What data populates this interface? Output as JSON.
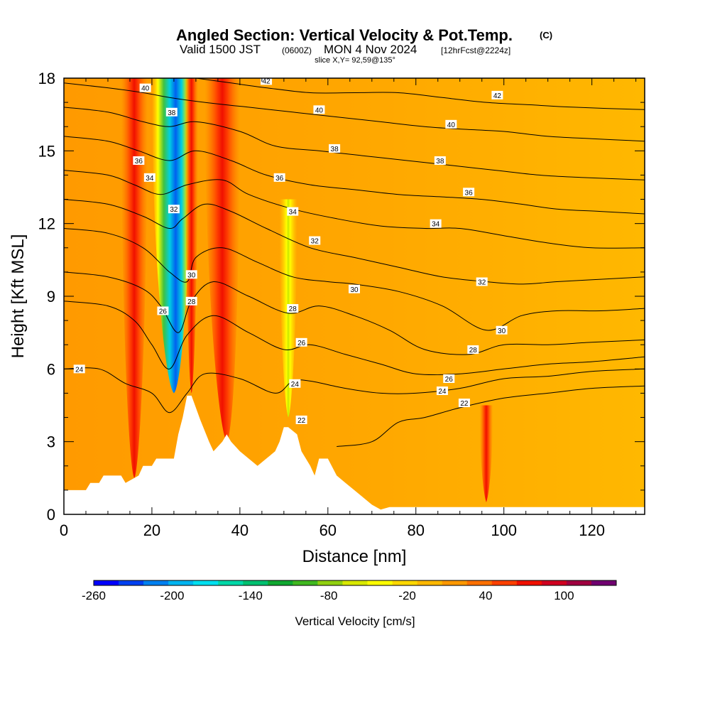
{
  "header": {
    "title_main": "Angled Section: Vertical Velocity & Pot.Temp.",
    "title_unit": "(C)",
    "valid_a": "Valid 1500 JST",
    "valid_b": "(0600Z)",
    "valid_c": "MON 4 Nov 2024",
    "valid_d": "[12hrFcst@2224z]",
    "slice": "slice X,Y= 92,59@135°"
  },
  "chart_data": {
    "type": "heatmap",
    "xlabel": "Distance [nm]",
    "ylabel": "Height [Kft MSL]",
    "xlim": [
      0,
      132
    ],
    "ylim": [
      0,
      18
    ],
    "x_ticks": [
      0,
      20,
      40,
      60,
      80,
      100,
      120
    ],
    "y_ticks": [
      0,
      3,
      6,
      9,
      12,
      15,
      18
    ],
    "x_tick_labels": [
      "0",
      "20",
      "40",
      "60",
      "80",
      "100",
      "120"
    ],
    "y_tick_labels": [
      "0",
      "3",
      "6",
      "9",
      "12",
      "15",
      "18"
    ],
    "colorbar": {
      "label": "Vertical Velocity [cm/s]",
      "min": -260,
      "max": 140,
      "step": 20,
      "tick_values": [
        -260,
        -200,
        -140,
        -80,
        -20,
        40,
        100
      ],
      "tick_labels": [
        "-260",
        "-200",
        "-140",
        "-80",
        "-20",
        "40",
        "100"
      ],
      "colors": [
        "#0000ff",
        "#0040f0",
        "#0080f0",
        "#00b4f0",
        "#00e0f0",
        "#00d8a8",
        "#00c070",
        "#10a830",
        "#40b820",
        "#90d010",
        "#d8e800",
        "#ffff00",
        "#ffd800",
        "#ffb800",
        "#ff9800",
        "#ff7000",
        "#ff4000",
        "#f01000",
        "#d00020",
        "#a00040",
        "#700070"
      ]
    },
    "velocity_features": [
      {
        "kind": "downdraft",
        "x_center": 25,
        "x_range": [
          20,
          29
        ],
        "y_range": [
          5,
          18
        ],
        "min_cm_s": -260
      },
      {
        "kind": "updraft",
        "x_center": 29,
        "x_range": [
          27.5,
          30.5
        ],
        "y_range": [
          5,
          18
        ],
        "max_cm_s": 60
      },
      {
        "kind": "updraft",
        "x_center": 37,
        "x_range": [
          32,
          40
        ],
        "y_range": [
          3,
          18
        ],
        "max_cm_s": 50
      },
      {
        "kind": "updraft",
        "x_center": 16,
        "x_range": [
          13,
          19
        ],
        "y_range": [
          1.5,
          18
        ],
        "max_cm_s": 40
      },
      {
        "kind": "weak_downdraft",
        "x_center": 51,
        "x_range": [
          49,
          53
        ],
        "y_range": [
          4,
          13
        ],
        "min_cm_s": -80
      },
      {
        "kind": "updraft",
        "x_center": 96,
        "x_range": [
          94.5,
          97.5
        ],
        "y_range": [
          0.5,
          4.5
        ],
        "max_cm_s": 40
      }
    ],
    "terrain": {
      "description": "terrain profile (Kft MSL) along the section",
      "x": [
        0,
        5,
        6,
        8,
        9,
        13,
        14,
        17,
        18,
        20,
        21,
        25,
        26,
        27,
        28,
        29,
        30,
        31,
        33,
        34,
        36,
        37,
        38,
        40,
        42,
        44,
        46,
        48,
        49,
        50,
        51,
        53,
        54,
        55,
        56,
        57,
        58,
        60,
        62,
        64,
        66,
        68,
        70,
        72,
        74,
        76,
        80,
        90,
        100,
        110,
        120,
        132
      ],
      "height": [
        1.0,
        1.0,
        1.3,
        1.3,
        1.6,
        1.6,
        1.3,
        1.6,
        2.0,
        2.0,
        2.3,
        2.3,
        3.3,
        4.0,
        4.9,
        4.9,
        4.4,
        3.9,
        3.0,
        2.6,
        3.0,
        3.3,
        3.0,
        2.6,
        2.3,
        2.0,
        2.3,
        2.6,
        3.0,
        3.6,
        3.6,
        3.3,
        2.6,
        2.3,
        2.0,
        1.6,
        2.3,
        2.3,
        1.6,
        1.3,
        1.0,
        0.7,
        0.4,
        0.2,
        0.3,
        0.3,
        0.3,
        0.3,
        0.3,
        0.3,
        0.3,
        0.3
      ]
    },
    "isentropes": [
      {
        "theta": 22,
        "x": [
          62,
          70,
          76,
          82,
          90,
          100,
          110,
          120,
          132
        ],
        "y": [
          2.8,
          3.0,
          3.8,
          4.0,
          4.4,
          4.8,
          5.0,
          5.2,
          5.3
        ]
      },
      {
        "theta": 24,
        "x": [
          0,
          8,
          14,
          20,
          24,
          28,
          32,
          40,
          48,
          52,
          56,
          64,
          72,
          80,
          90,
          100,
          110,
          120,
          132
        ],
        "y": [
          6.0,
          6.0,
          5.4,
          5.0,
          4.2,
          5.0,
          5.8,
          5.6,
          5.0,
          5.5,
          5.5,
          5.2,
          5.0,
          5.0,
          5.2,
          5.6,
          5.7,
          5.9,
          6.0
        ]
      },
      {
        "theta": 26,
        "x": [
          0,
          10,
          16,
          20,
          24,
          28,
          34,
          42,
          50,
          56,
          64,
          72,
          80,
          90,
          100,
          110,
          120,
          132
        ],
        "y": [
          8.8,
          8.6,
          8.0,
          7.0,
          6.0,
          7.4,
          8.2,
          7.5,
          6.8,
          7.0,
          6.6,
          6.2,
          5.8,
          5.8,
          6.0,
          6.2,
          6.3,
          6.5
        ]
      },
      {
        "theta": 28,
        "x": [
          0,
          10,
          18,
          22,
          26,
          29,
          34,
          42,
          51,
          58,
          66,
          74,
          82,
          92,
          100,
          110,
          120,
          132
        ],
        "y": [
          10.0,
          9.8,
          9.3,
          8.6,
          7.5,
          8.8,
          9.6,
          9.0,
          8.3,
          8.6,
          8.2,
          7.6,
          6.8,
          6.6,
          7.0,
          7.0,
          7.1,
          7.2
        ]
      },
      {
        "theta": 30,
        "x": [
          0,
          10,
          18,
          24,
          28,
          30,
          36,
          44,
          52,
          60,
          66,
          76,
          86,
          96,
          104,
          112,
          122,
          132
        ],
        "y": [
          11.8,
          11.6,
          11.0,
          10.0,
          9.6,
          10.6,
          11.0,
          10.4,
          9.8,
          9.6,
          9.5,
          9.2,
          8.6,
          7.6,
          8.2,
          8.4,
          8.4,
          8.5
        ]
      },
      {
        "theta": 32,
        "x": [
          0,
          10,
          18,
          24,
          27,
          32,
          38,
          46,
          56,
          66,
          76,
          86,
          96,
          104,
          112,
          122,
          132
        ],
        "y": [
          13.0,
          12.8,
          12.3,
          11.8,
          12.2,
          12.8,
          12.5,
          11.8,
          11.0,
          10.6,
          10.2,
          9.8,
          9.6,
          9.5,
          9.6,
          9.7,
          9.8
        ]
      },
      {
        "theta": 34,
        "x": [
          0,
          10,
          16,
          22,
          28,
          36,
          42,
          52,
          62,
          72,
          82,
          90,
          100,
          110,
          120,
          132
        ],
        "y": [
          14.2,
          14.0,
          13.6,
          13.2,
          13.6,
          13.8,
          13.2,
          12.6,
          12.2,
          11.9,
          11.8,
          11.8,
          11.5,
          11.2,
          11.0,
          11.0
        ]
      },
      {
        "theta": 36,
        "x": [
          0,
          10,
          17,
          24,
          30,
          38,
          46,
          56,
          66,
          76,
          86,
          95,
          104,
          112,
          122,
          132
        ],
        "y": [
          15.6,
          15.4,
          15.0,
          14.6,
          15.0,
          14.6,
          14.0,
          13.6,
          13.4,
          13.2,
          13.1,
          13.0,
          12.8,
          12.6,
          12.5,
          12.4
        ]
      },
      {
        "theta": 38,
        "x": [
          0,
          10,
          18,
          24,
          30,
          40,
          48,
          58,
          68,
          78,
          88,
          98,
          108,
          118,
          132
        ],
        "y": [
          16.8,
          16.6,
          16.2,
          16.0,
          16.2,
          15.8,
          15.2,
          15.0,
          14.8,
          14.6,
          14.4,
          14.2,
          14.0,
          13.9,
          13.8
        ]
      },
      {
        "theta": 40,
        "x": [
          0,
          10,
          18,
          24,
          32,
          42,
          52,
          62,
          72,
          82,
          90,
          100,
          110,
          120,
          132
        ],
        "y": [
          17.8,
          17.6,
          17.4,
          17.2,
          17.0,
          16.8,
          16.6,
          16.4,
          16.2,
          16.0,
          15.9,
          15.8,
          15.6,
          15.5,
          15.4
        ]
      },
      {
        "theta": 42,
        "x": [
          30,
          38,
          46,
          56,
          66,
          76,
          86,
          96,
          106,
          116,
          132
        ],
        "y": [
          18.0,
          17.8,
          17.6,
          17.4,
          17.4,
          17.4,
          17.2,
          17.0,
          16.9,
          16.8,
          16.7
        ]
      }
    ],
    "contour_labels": [
      {
        "text": "40",
        "x": 18.5,
        "y": 17.6
      },
      {
        "text": "42",
        "x": 46,
        "y": 17.9
      },
      {
        "text": "42",
        "x": 98.5,
        "y": 17.3
      },
      {
        "text": "38",
        "x": 24.5,
        "y": 16.6
      },
      {
        "text": "40",
        "x": 58,
        "y": 16.7
      },
      {
        "text": "40",
        "x": 88,
        "y": 16.1
      },
      {
        "text": "36",
        "x": 17,
        "y": 14.6
      },
      {
        "text": "38",
        "x": 61.5,
        "y": 15.1
      },
      {
        "text": "38",
        "x": 85.5,
        "y": 14.6
      },
      {
        "text": "34",
        "x": 19.5,
        "y": 13.9
      },
      {
        "text": "36",
        "x": 49,
        "y": 13.9
      },
      {
        "text": "36",
        "x": 92,
        "y": 13.3
      },
      {
        "text": "32",
        "x": 25,
        "y": 12.6
      },
      {
        "text": "34",
        "x": 52,
        "y": 12.5
      },
      {
        "text": "34",
        "x": 84.5,
        "y": 12.0
      },
      {
        "text": "32",
        "x": 57,
        "y": 11.3
      },
      {
        "text": "30",
        "x": 29,
        "y": 9.9
      },
      {
        "text": "30",
        "x": 66,
        "y": 9.3
      },
      {
        "text": "32",
        "x": 95,
        "y": 9.6
      },
      {
        "text": "28",
        "x": 29,
        "y": 8.8
      },
      {
        "text": "28",
        "x": 52,
        "y": 8.5
      },
      {
        "text": "26",
        "x": 22.5,
        "y": 8.4
      },
      {
        "text": "30",
        "x": 99.5,
        "y": 7.6
      },
      {
        "text": "26",
        "x": 54,
        "y": 7.1
      },
      {
        "text": "28",
        "x": 93,
        "y": 6.8
      },
      {
        "text": "24",
        "x": 3.5,
        "y": 6.0
      },
      {
        "text": "24",
        "x": 52.5,
        "y": 5.4
      },
      {
        "text": "26",
        "x": 87.5,
        "y": 5.6
      },
      {
        "text": "24",
        "x": 86,
        "y": 5.1
      },
      {
        "text": "22",
        "x": 91,
        "y": 4.6
      },
      {
        "text": "22",
        "x": 54,
        "y": 3.9
      }
    ]
  }
}
